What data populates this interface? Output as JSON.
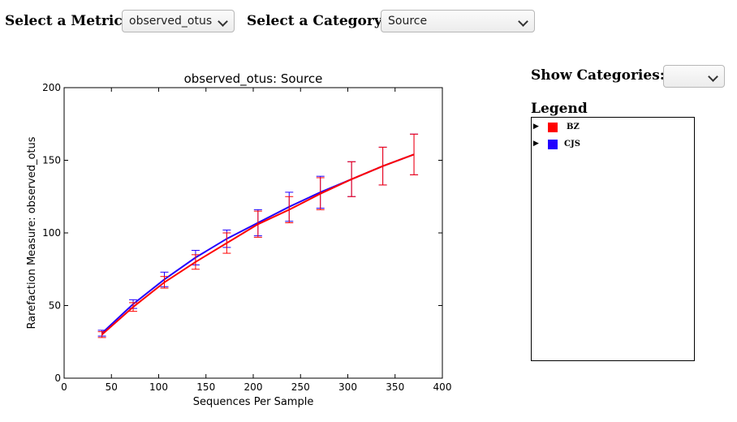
{
  "controls": {
    "metric_label": "Select a Metric:",
    "metric_value": "observed_otus",
    "category_label": "Select a Category:",
    "category_value": "Source",
    "show_categories_label": "Show Categories:",
    "show_categories_value": ""
  },
  "legend": {
    "title": "Legend",
    "items": [
      {
        "name": "BZ",
        "color": "#ff0000"
      },
      {
        "name": "CJS",
        "color": "#2200ff"
      }
    ]
  },
  "chart_data": {
    "type": "line",
    "title": "observed_otus: Source",
    "xlabel": "Sequences Per Sample",
    "ylabel": "Rarefaction Measure: observed_otus",
    "xlim": [
      0,
      400
    ],
    "ylim": [
      0,
      200
    ],
    "xticks": [
      0,
      50,
      100,
      150,
      200,
      250,
      300,
      350,
      400
    ],
    "yticks": [
      0,
      50,
      100,
      150,
      200
    ],
    "grid": false,
    "x": [
      40,
      73,
      106,
      139,
      172,
      205,
      238,
      271,
      304,
      337,
      370
    ],
    "series": [
      {
        "name": "BZ",
        "color": "#ff0000",
        "values": [
          30,
          49,
          66,
          80,
          93,
          106,
          116,
          127,
          137,
          146,
          154
        ],
        "err": [
          2,
          3,
          4,
          5,
          7,
          9,
          9,
          11,
          12,
          13,
          14
        ]
      },
      {
        "name": "CJS",
        "color": "#2200ff",
        "values": [
          31,
          51,
          68,
          83,
          96,
          107,
          118,
          128,
          137,
          146,
          154
        ],
        "err": [
          2,
          3,
          5,
          5,
          6,
          9,
          10,
          11,
          12,
          13,
          14
        ]
      }
    ]
  }
}
